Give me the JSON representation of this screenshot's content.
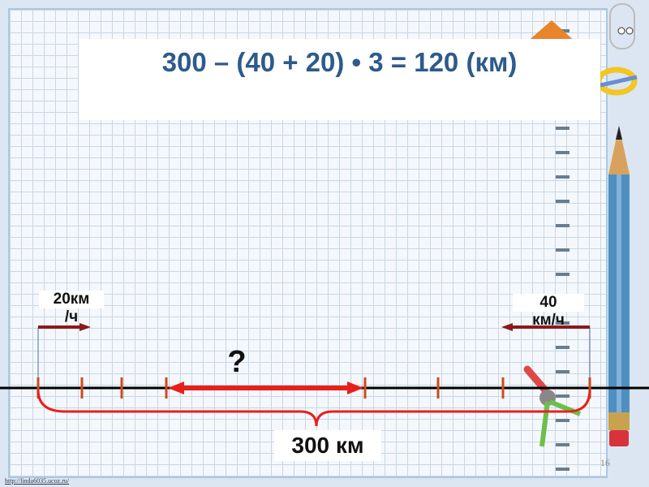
{
  "formula": "300 – (40 + 20) • 3 = 120 (км)",
  "left_speed": {
    "line1": "20км",
    "line2": "/ч"
  },
  "right_speed": {
    "line1": "40",
    "line2": "км/ч"
  },
  "question": "?",
  "distance": "300 км",
  "page_number": "16",
  "footer_link": "http://linda6035.ucoz.ru/",
  "colors": {
    "formula": "#2e5a8c",
    "ticks": "#d04a1a",
    "arrow": "#e8201a",
    "brace": "#e8201a",
    "speed_arrows": "#8b1a1a"
  }
}
